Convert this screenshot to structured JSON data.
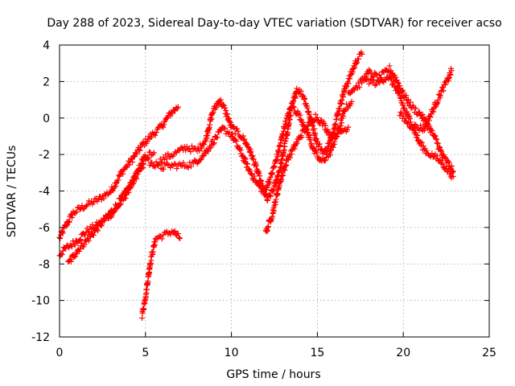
{
  "chart_data": {
    "type": "scatter",
    "title": "Day 288 of 2023, Sidereal Day-to-day VTEC variation (SDTVAR) for receiver acso",
    "xlabel": "GPS time / hours",
    "ylabel": "SDTVAR / TECUs",
    "xlim": [
      0,
      25
    ],
    "ylim": [
      -12,
      4
    ],
    "xticks": [
      "0",
      "5",
      "10",
      "15",
      "20",
      "25"
    ],
    "yticks": [
      "4",
      "2",
      "0",
      "-2",
      "-4",
      "-6",
      "-8",
      "-10",
      "-12"
    ],
    "grid": true,
    "marker": "+",
    "color": "#ff0000",
    "series": [
      {
        "name": "SDTVAR",
        "trends": [
          [
            [
              0.0,
              -6.6
            ],
            [
              0.3,
              -6.0
            ],
            [
              0.8,
              -5.2
            ],
            [
              1.5,
              -4.8
            ],
            [
              2.2,
              -4.5
            ],
            [
              3.0,
              -4.0
            ],
            [
              3.6,
              -3.0
            ],
            [
              4.2,
              -2.3
            ],
            [
              4.8,
              -1.5
            ],
            [
              5.3,
              -1.0
            ],
            [
              5.9,
              -0.5
            ],
            [
              6.5,
              0.3
            ],
            [
              6.9,
              0.6
            ]
          ],
          [
            [
              0.0,
              -7.5
            ],
            [
              0.3,
              -7.2
            ],
            [
              0.9,
              -6.8
            ],
            [
              1.6,
              -6.2
            ],
            [
              2.3,
              -5.8
            ],
            [
              3.1,
              -5.2
            ],
            [
              3.7,
              -4.5
            ],
            [
              4.2,
              -3.6
            ],
            [
              4.6,
              -2.8
            ],
            [
              5.0,
              -2.1
            ],
            [
              5.5,
              -1.9
            ]
          ],
          [
            [
              0.5,
              -8.0
            ],
            [
              1.0,
              -7.3
            ],
            [
              1.8,
              -6.5
            ],
            [
              2.6,
              -5.6
            ],
            [
              3.3,
              -4.8
            ],
            [
              3.9,
              -4.0
            ],
            [
              4.4,
              -3.3
            ],
            [
              4.9,
              -2.5
            ]
          ],
          [
            [
              4.8,
              -10.8
            ],
            [
              5.0,
              -9.8
            ],
            [
              5.3,
              -7.8
            ],
            [
              5.6,
              -6.6
            ],
            [
              6.1,
              -6.4
            ],
            [
              6.6,
              -6.2
            ],
            [
              7.0,
              -6.6
            ]
          ],
          [
            [
              4.8,
              -2.2
            ],
            [
              5.5,
              -2.6
            ],
            [
              6.1,
              -2.2
            ],
            [
              6.8,
              -1.9
            ],
            [
              7.4,
              -1.6
            ],
            [
              8.0,
              -1.8
            ],
            [
              8.5,
              -1.2
            ],
            [
              8.9,
              0.3
            ],
            [
              9.3,
              1.0
            ],
            [
              9.6,
              0.5
            ],
            [
              10.0,
              -0.5
            ],
            [
              10.6,
              -1.0
            ],
            [
              11.0,
              -1.6
            ],
            [
              11.4,
              -2.6
            ],
            [
              11.8,
              -3.8
            ],
            [
              12.1,
              -4.5
            ],
            [
              12.5,
              -3.8
            ],
            [
              12.9,
              -2.5
            ],
            [
              13.2,
              -1.0
            ],
            [
              13.5,
              0.5
            ],
            [
              13.8,
              1.6
            ],
            [
              14.2,
              1.2
            ],
            [
              14.6,
              0.0
            ],
            [
              15.0,
              -1.4
            ],
            [
              15.4,
              -1.9
            ],
            [
              15.8,
              -1.2
            ],
            [
              16.2,
              0.3
            ],
            [
              16.6,
              1.6
            ],
            [
              17.0,
              2.5
            ],
            [
              17.3,
              3.2
            ],
            [
              17.6,
              3.5
            ]
          ],
          [
            [
              5.9,
              -2.7
            ],
            [
              6.6,
              -2.6
            ],
            [
              7.2,
              -2.6
            ],
            [
              7.8,
              -2.5
            ],
            [
              8.4,
              -2.0
            ],
            [
              9.0,
              -1.2
            ],
            [
              9.5,
              -0.6
            ],
            [
              10.0,
              -0.9
            ],
            [
              10.5,
              -1.8
            ],
            [
              11.0,
              -2.8
            ],
            [
              11.5,
              -3.6
            ],
            [
              11.9,
              -4.1
            ],
            [
              12.3,
              -3.2
            ],
            [
              12.7,
              -2.0
            ],
            [
              13.1,
              -0.4
            ],
            [
              13.5,
              0.7
            ],
            [
              13.9,
              0.2
            ],
            [
              14.4,
              -0.7
            ],
            [
              14.8,
              -1.8
            ],
            [
              15.2,
              -2.4
            ],
            [
              15.7,
              -2.0
            ],
            [
              16.2,
              -0.8
            ],
            [
              16.6,
              0.5
            ],
            [
              17.0,
              0.9
            ]
          ],
          [
            [
              12.0,
              -6.3
            ],
            [
              12.4,
              -5.2
            ],
            [
              12.8,
              -3.6
            ],
            [
              13.2,
              -2.4
            ],
            [
              13.6,
              -1.7
            ],
            [
              14.0,
              -1.0
            ],
            [
              14.4,
              -0.5
            ],
            [
              14.9,
              0.1
            ],
            [
              15.4,
              -0.4
            ],
            [
              15.8,
              -1.0
            ],
            [
              16.3,
              -0.8
            ],
            [
              16.8,
              -0.5
            ]
          ],
          [
            [
              16.8,
              1.4
            ],
            [
              17.4,
              1.8
            ],
            [
              18.0,
              2.5
            ],
            [
              18.6,
              2.2
            ],
            [
              19.2,
              2.7
            ],
            [
              19.6,
              2.1
            ],
            [
              20.0,
              1.3
            ],
            [
              20.5,
              0.6
            ],
            [
              21.0,
              0.2
            ],
            [
              21.5,
              -0.5
            ],
            [
              21.9,
              -1.2
            ],
            [
              22.3,
              -2.1
            ],
            [
              22.7,
              -2.6
            ],
            [
              22.9,
              -2.9
            ]
          ],
          [
            [
              17.8,
              2.1
            ],
            [
              18.5,
              1.9
            ],
            [
              19.1,
              2.3
            ],
            [
              19.6,
              1.6
            ],
            [
              20.1,
              0.4
            ],
            [
              20.5,
              -0.3
            ],
            [
              20.9,
              -1.3
            ],
            [
              21.4,
              -1.9
            ],
            [
              21.8,
              -2.1
            ],
            [
              22.2,
              -2.4
            ],
            [
              22.6,
              -2.9
            ],
            [
              22.9,
              -3.2
            ]
          ],
          [
            [
              19.8,
              0.2
            ],
            [
              20.4,
              -0.4
            ],
            [
              20.8,
              -0.5
            ],
            [
              21.2,
              -0.6
            ],
            [
              21.6,
              0.2
            ],
            [
              22.0,
              1.0
            ],
            [
              22.3,
              1.6
            ],
            [
              22.6,
              2.1
            ],
            [
              22.8,
              2.6
            ]
          ]
        ]
      }
    ]
  }
}
